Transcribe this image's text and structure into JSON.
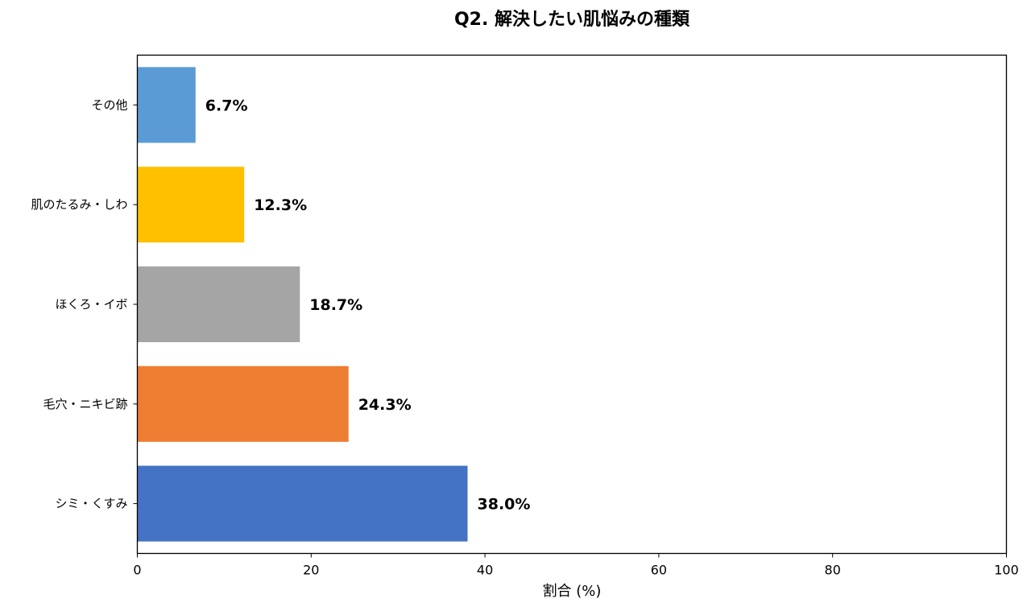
{
  "chart_data": {
    "type": "bar",
    "orientation": "horizontal",
    "title": "Q2. 解決したい肌悩みの種類",
    "xlabel": "割合 (%)",
    "ylabel": "",
    "xlim": [
      0,
      100
    ],
    "xticks": [
      0,
      20,
      40,
      60,
      80,
      100
    ],
    "grid": false,
    "categories": [
      "シミ・くすみ",
      "毛穴・ニキビ跡",
      "ほくろ・イボ",
      "肌のたるみ・しわ",
      "その他"
    ],
    "values": [
      38.0,
      24.3,
      18.7,
      12.3,
      6.7
    ],
    "value_labels": [
      "38.0%",
      "24.3%",
      "18.7%",
      "12.3%",
      "6.7%"
    ],
    "colors": [
      "#4472c4",
      "#ed7d31",
      "#a5a5a5",
      "#ffc000",
      "#5b9bd5"
    ]
  }
}
